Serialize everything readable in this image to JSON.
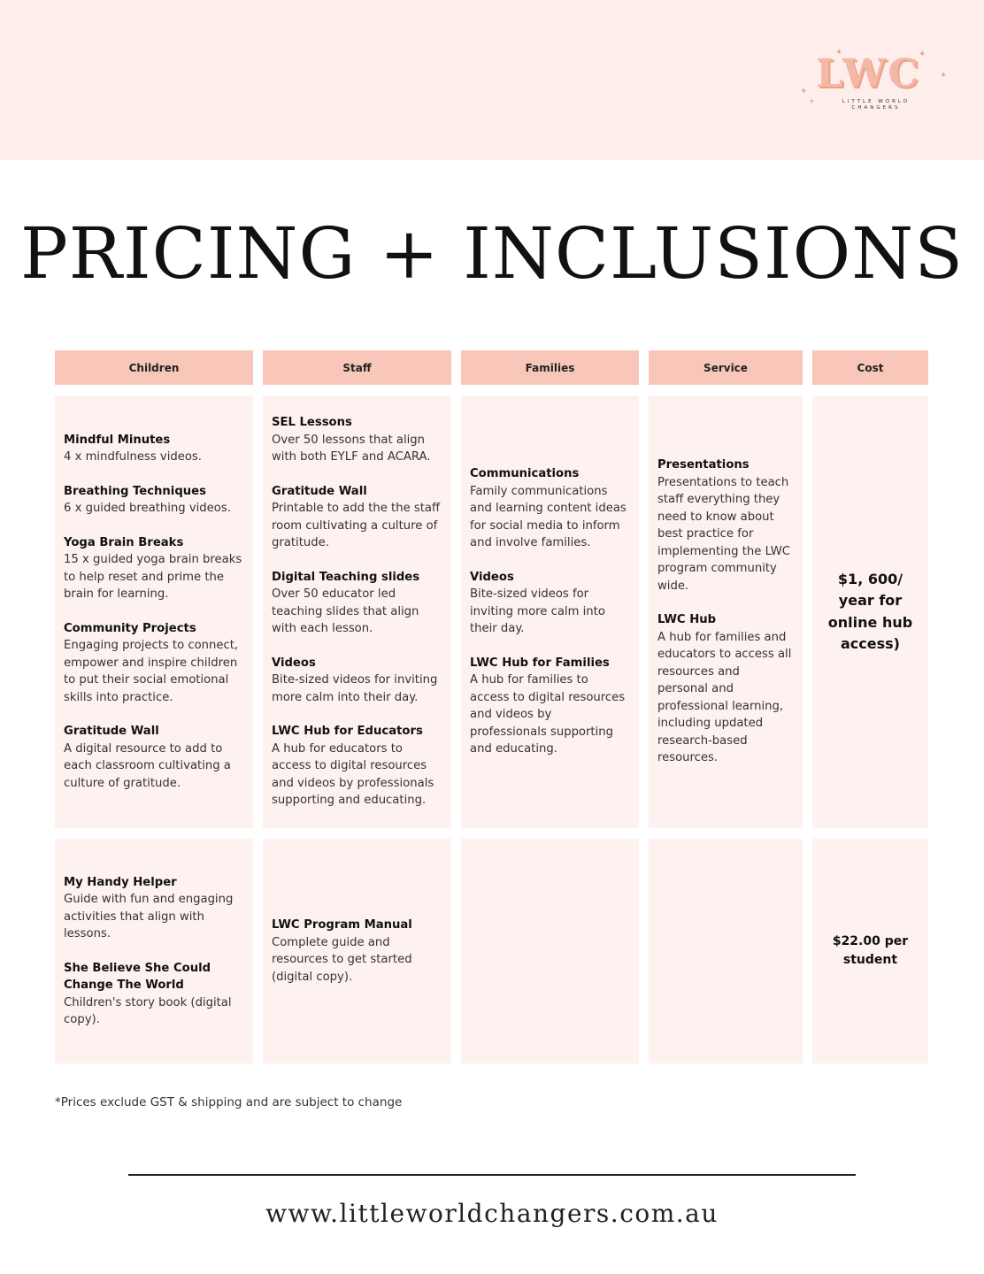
{
  "logo": {
    "letters": "LWC",
    "subtitle_line1": "LITTLE WORLD",
    "subtitle_line2": "CHANGERS",
    "accent_color": "#f4b9a6"
  },
  "title": "PRICING + INCLUSIONS",
  "columns": [
    "Children",
    "Staff",
    "Families",
    "Service",
    "Cost"
  ],
  "row1": {
    "children": [
      {
        "title": "Mindful Minutes",
        "desc": "4 x mindfulness videos."
      },
      {
        "title": "Breathing Techniques",
        "desc": "6 x guided breathing videos."
      },
      {
        "title": "Yoga Brain Breaks",
        "desc": "15 x guided yoga brain breaks to help reset and prime the brain for learning."
      },
      {
        "title": "Community Projects",
        "desc": "Engaging projects to connect, empower and inspire children to put their social emotional skills into practice."
      },
      {
        "title": "Gratitude Wall",
        "desc": "A digital resource  to add to each classroom cultivating a culture of gratitude."
      }
    ],
    "staff": [
      {
        "title": "SEL Lessons",
        "desc": "Over 50 lessons that align with both EYLF and ACARA."
      },
      {
        "title": "Gratitude Wall",
        "desc": "Printable to add the the staff room cultivating a culture of gratitude."
      },
      {
        "title": "Digital Teaching slides",
        "desc": "Over 50 educator led teaching slides that align with each lesson."
      },
      {
        "title": "Videos",
        "desc": "Bite-sized videos for inviting more calm into their day."
      },
      {
        "title": "LWC Hub for Educators",
        "desc": "A hub for educators to access to digital resources and videos by professionals supporting and educating."
      }
    ],
    "families": [
      {
        "title": "Communications",
        "desc": "Family communications and learning content ideas for social media to inform and involve families."
      },
      {
        "title": "Videos",
        "desc": "Bite-sized videos for inviting more calm into their day."
      },
      {
        "title": "LWC Hub for Families",
        "desc": "A hub for families to access to digital resources and videos by professionals supporting and educating."
      }
    ],
    "service": [
      {
        "title": "Presentations",
        "desc": "Presentations to teach staff everything they need to know about best practice for implementing the LWC program community wide."
      },
      {
        "title": "LWC Hub",
        "desc": "A hub for families and educators to access all resources and personal and professional learning, including updated research-based resources."
      }
    ],
    "cost": "$1, 600/ year for online hub access)"
  },
  "row2": {
    "children": [
      {
        "title": "My Handy  Helper",
        "desc": "Guide with fun and engaging activities that align with lessons."
      },
      {
        "title": "She Believe She Could Change The World",
        "desc": "Children's story book (digital copy)."
      }
    ],
    "staff": [
      {
        "title": "LWC Program Manual",
        "desc": "Complete guide and resources to get started (digital copy)."
      }
    ],
    "cost": "$22.00 per student"
  },
  "footnote": "*Prices exclude GST & shipping and are subject to change",
  "website": "www.littleworldchangers.com.au"
}
